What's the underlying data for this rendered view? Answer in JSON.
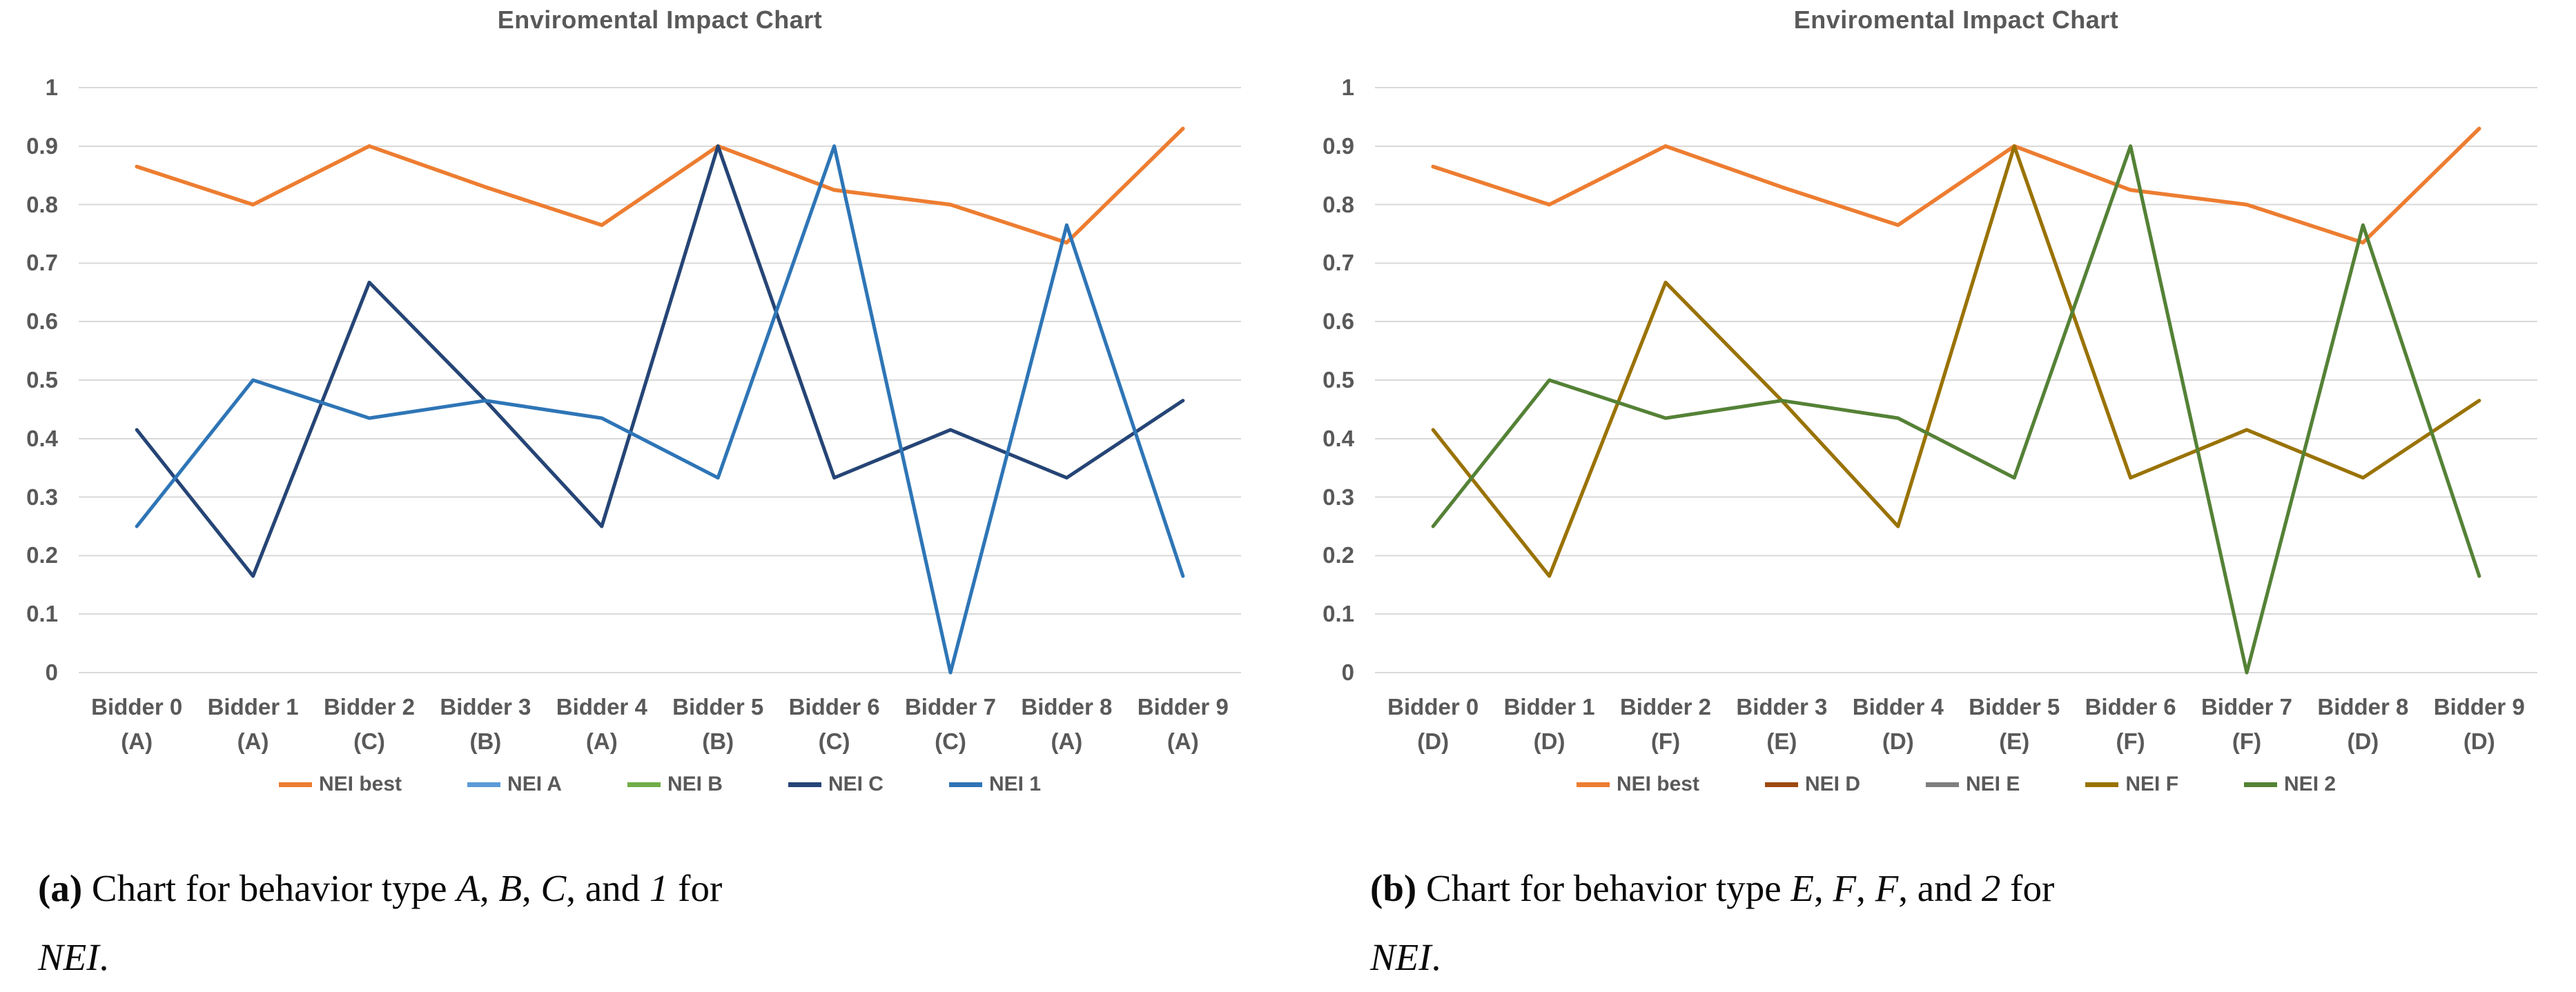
{
  "figure": {
    "style": {
      "grid_color": "#D9D9D9",
      "axis_text_color": "#595959",
      "title_text_color": "#595959",
      "caption_text_color": "#0a0a0a"
    },
    "panels": [
      {
        "id": "a",
        "caption": {
          "lines": [
            [
              {
                "text": "(a)",
                "style": "bold"
              },
              {
                "text": " Chart for behavior type ",
                "style": "normal"
              },
              {
                "text": "A",
                "style": "italic"
              },
              {
                "text": ", ",
                "style": "normal"
              },
              {
                "text": "B",
                "style": "italic"
              },
              {
                "text": ", ",
                "style": "normal"
              },
              {
                "text": "C",
                "style": "italic"
              },
              {
                "text": ", and ",
                "style": "normal"
              },
              {
                "text": "1",
                "style": "italic"
              },
              {
                "text": " for",
                "style": "normal"
              }
            ],
            [
              {
                "text": "NEI",
                "style": "italic"
              },
              {
                "text": ".",
                "style": "normal"
              }
            ]
          ]
        }
      },
      {
        "id": "b",
        "caption": {
          "lines": [
            [
              {
                "text": "(b)",
                "style": "bold"
              },
              {
                "text": " Chart for behavior type ",
                "style": "normal"
              },
              {
                "text": "E",
                "style": "italic"
              },
              {
                "text": ", ",
                "style": "normal"
              },
              {
                "text": "F",
                "style": "italic"
              },
              {
                "text": ", ",
                "style": "normal"
              },
              {
                "text": "F",
                "style": "italic"
              },
              {
                "text": ", and ",
                "style": "normal"
              },
              {
                "text": "2",
                "style": "italic"
              },
              {
                "text": " for",
                "style": "normal"
              }
            ],
            [
              {
                "text": "NEI",
                "style": "italic"
              },
              {
                "text": ".",
                "style": "normal"
              }
            ]
          ]
        }
      }
    ]
  },
  "chart_data": [
    {
      "type": "line",
      "title": "Enviromental Impact Chart",
      "xlabel": "",
      "ylabel": "",
      "ylim": [
        0,
        1
      ],
      "grid": true,
      "legend_position": "bottom",
      "ytick_labels": [
        "1",
        "0.9",
        "0.8",
        "0.7",
        "0.6",
        "0.5",
        "0.4",
        "0.3",
        "0.2",
        "0.1",
        "0"
      ],
      "ytick_values": [
        1,
        0.9,
        0.8,
        0.7,
        0.6,
        0.5,
        0.4,
        0.3,
        0.2,
        0.1,
        0
      ],
      "categories": [
        {
          "label": "Bidder 0",
          "sub": "(A)"
        },
        {
          "label": "Bidder 1",
          "sub": "(A)"
        },
        {
          "label": "Bidder 2",
          "sub": "(C)"
        },
        {
          "label": "Bidder 3",
          "sub": "(B)"
        },
        {
          "label": "Bidder 4",
          "sub": "(A)"
        },
        {
          "label": "Bidder 5",
          "sub": "(B)"
        },
        {
          "label": "Bidder 6",
          "sub": "(C)"
        },
        {
          "label": "Bidder 7",
          "sub": "(C)"
        },
        {
          "label": "Bidder 8",
          "sub": "(A)"
        },
        {
          "label": "Bidder 9",
          "sub": "(A)"
        }
      ],
      "series": [
        {
          "name": "NEI best",
          "color": "#ED7D31",
          "width": 5.5,
          "values": [
            0.865,
            0.8,
            0.9,
            0.83,
            0.765,
            0.9,
            0.825,
            0.8,
            0.735,
            0.93
          ]
        },
        {
          "name": "NEI A",
          "color": "#5B9BD5",
          "width": 5,
          "occluded_by": "NEI 1",
          "values": [
            0.25,
            0.5,
            0.435,
            0.465,
            0.435,
            0.333,
            0.9,
            0,
            0.765,
            0.165
          ]
        },
        {
          "name": "NEI B",
          "color": "#70AD47",
          "width": 5,
          "occluded_by": "NEI C",
          "values": [
            0.415,
            0.165,
            0.667,
            0.465,
            0.25,
            0.9,
            0.333,
            0.415,
            0.333,
            0.465
          ]
        },
        {
          "name": "NEI C",
          "color": "#264478",
          "width": 5,
          "values": [
            0.415,
            0.165,
            0.667,
            0.465,
            0.25,
            0.9,
            0.333,
            0.415,
            0.333,
            0.465
          ]
        },
        {
          "name": "NEI 1",
          "color": "#2E75B6",
          "width": 5,
          "values": [
            0.25,
            0.5,
            0.435,
            0.465,
            0.435,
            0.333,
            0.9,
            0,
            0.765,
            0.165
          ]
        }
      ]
    },
    {
      "type": "line",
      "title": "Enviromental Impact Chart",
      "xlabel": "",
      "ylabel": "",
      "ylim": [
        0,
        1
      ],
      "grid": true,
      "legend_position": "bottom",
      "ytick_labels": [
        "1",
        "0.9",
        "0.8",
        "0.7",
        "0.6",
        "0.5",
        "0.4",
        "0.3",
        "0.2",
        "0.1",
        "0"
      ],
      "ytick_values": [
        1,
        0.9,
        0.8,
        0.7,
        0.6,
        0.5,
        0.4,
        0.3,
        0.2,
        0.1,
        0
      ],
      "categories": [
        {
          "label": "Bidder 0",
          "sub": "(D)"
        },
        {
          "label": "Bidder 1",
          "sub": "(D)"
        },
        {
          "label": "Bidder 2",
          "sub": "(F)"
        },
        {
          "label": "Bidder 3",
          "sub": "(E)"
        },
        {
          "label": "Bidder 4",
          "sub": "(D)"
        },
        {
          "label": "Bidder 5",
          "sub": "(E)"
        },
        {
          "label": "Bidder 6",
          "sub": "(F)"
        },
        {
          "label": "Bidder 7",
          "sub": "(F)"
        },
        {
          "label": "Bidder 8",
          "sub": "(D)"
        },
        {
          "label": "Bidder 9",
          "sub": "(D)"
        }
      ],
      "series": [
        {
          "name": "NEI best",
          "color": "#ED7D31",
          "width": 5.5,
          "values": [
            0.865,
            0.8,
            0.9,
            0.83,
            0.765,
            0.9,
            0.825,
            0.8,
            0.735,
            0.93
          ]
        },
        {
          "name": "NEI D",
          "color": "#9E480E",
          "width": 5,
          "occluded_by": "NEI F",
          "values": [
            0.415,
            0.165,
            0.667,
            0.465,
            0.25,
            0.9,
            0.333,
            0.415,
            0.333,
            0.465
          ]
        },
        {
          "name": "NEI E",
          "color": "#7F7F7F",
          "width": 5,
          "occluded_by": "NEI 2",
          "values": [
            0.25,
            0.5,
            0.435,
            0.465,
            0.435,
            0.333,
            0.9,
            0,
            0.765,
            0.165
          ]
        },
        {
          "name": "NEI F",
          "color": "#997300",
          "width": 5,
          "values": [
            0.415,
            0.165,
            0.667,
            0.465,
            0.25,
            0.9,
            0.333,
            0.415,
            0.333,
            0.465
          ]
        },
        {
          "name": "NEI 2",
          "color": "#548235",
          "width": 5,
          "values": [
            0.25,
            0.5,
            0.435,
            0.465,
            0.435,
            0.333,
            0.9,
            0,
            0.765,
            0.165
          ]
        }
      ]
    }
  ]
}
